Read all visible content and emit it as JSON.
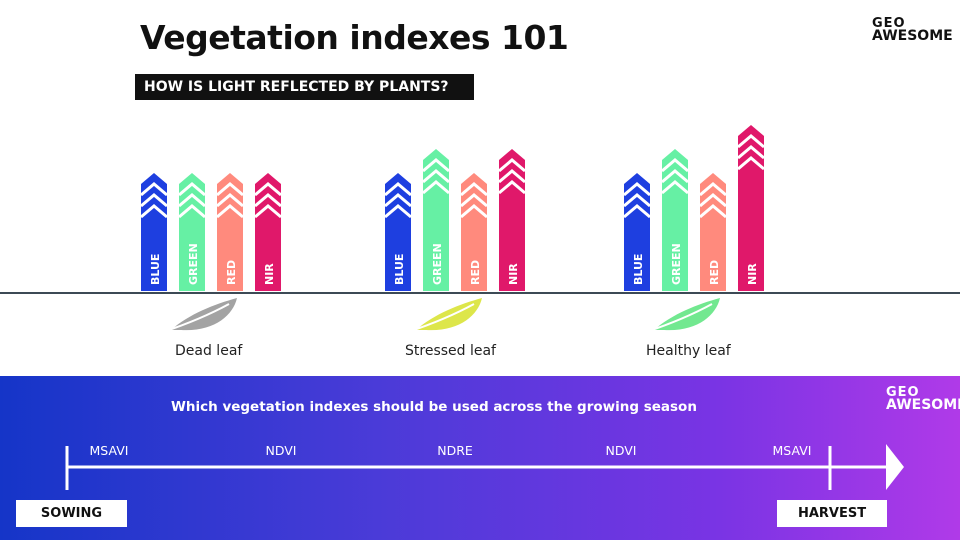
{
  "header": {
    "title": "Vegetation indexes 101",
    "subtitle": "HOW IS LIGHT REFLECTED BY PLANTS?"
  },
  "logo": {
    "line1": "GEO",
    "line2": "AWESOME"
  },
  "colors": {
    "blue": "#1e3fe0",
    "green": "#66f0a4",
    "red": "#ff8a7d",
    "nir": "#e0186a"
  },
  "reflectance": {
    "band_labels": [
      "BLUE",
      "GREEN",
      "RED",
      "NIR"
    ],
    "groups": [
      {
        "leaf_label": "Dead leaf",
        "leaf_color": "#a3a3a3",
        "levels": [
          4,
          4,
          4,
          4
        ]
      },
      {
        "leaf_label": "Stressed leaf",
        "leaf_color": "#dde64a",
        "levels": [
          4,
          5,
          4,
          5
        ]
      },
      {
        "leaf_label": "Healthy leaf",
        "leaf_color": "#72e890",
        "levels": [
          4,
          5,
          4,
          6
        ]
      }
    ]
  },
  "season": {
    "heading": "Which vegetation indexes should be used across the growing season",
    "stages": [
      "MSAVI",
      "NDVI",
      "NDRE",
      "NDVI",
      "MSAVI"
    ],
    "start_label": "SOWING",
    "end_label": "HARVEST"
  }
}
